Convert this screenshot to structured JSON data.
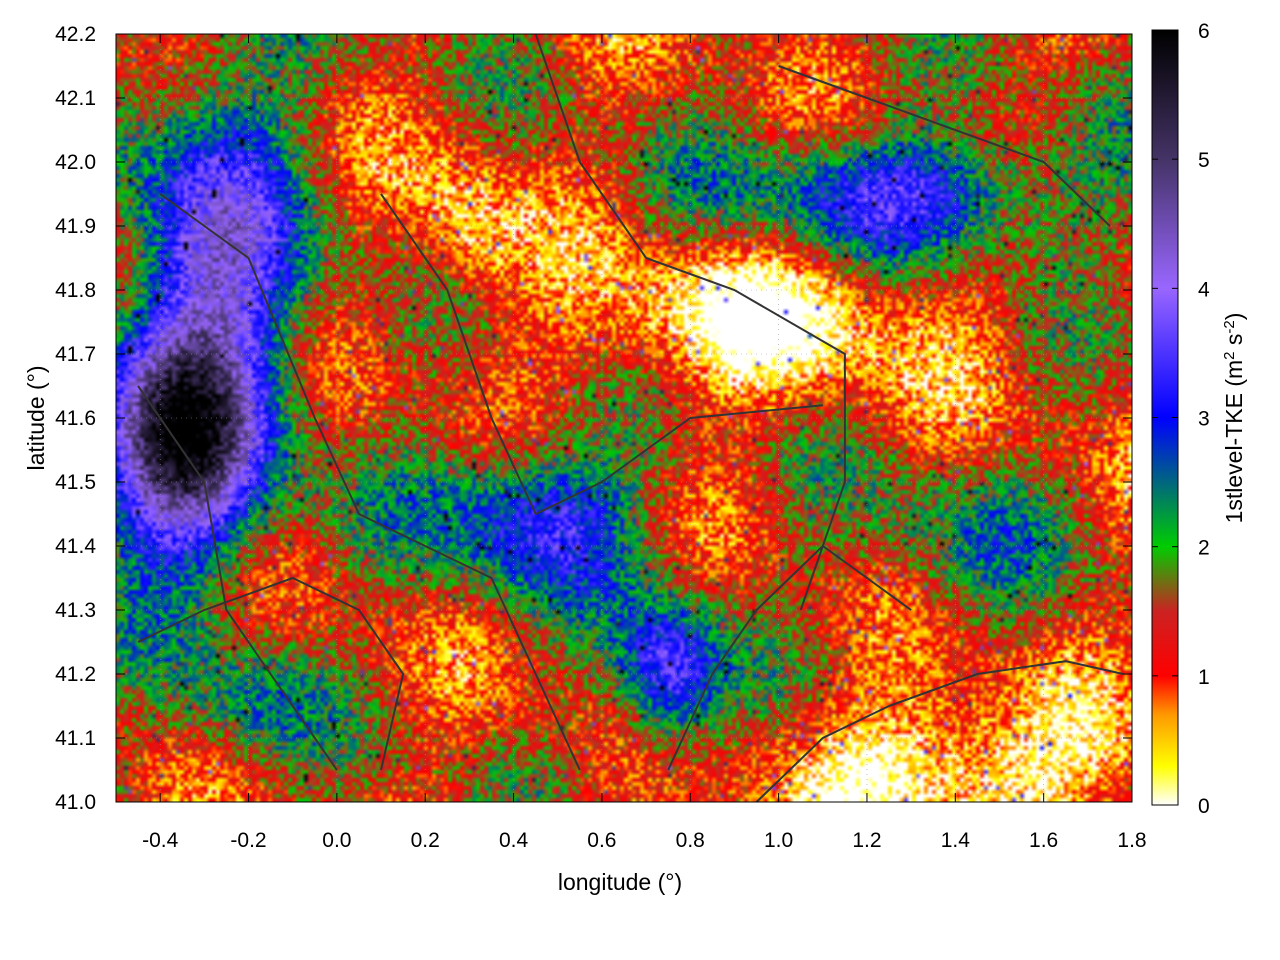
{
  "chart_data": {
    "type": "heatmap",
    "title": "",
    "xlabel": "longitude (°)",
    "ylabel": "latitude (°)",
    "xlim": [
      -0.5,
      1.8
    ],
    "ylim": [
      41.0,
      42.2
    ],
    "xticks": [
      -0.4,
      -0.2,
      0.0,
      0.2,
      0.4,
      0.6,
      0.8,
      1.0,
      1.2,
      1.4,
      1.6,
      1.8
    ],
    "xtick_labels": [
      "-0.4",
      "-0.2",
      "0.0",
      "0.2",
      "0.4",
      "0.6",
      "0.8",
      "1.0",
      "1.2",
      "1.4",
      "1.6",
      "1.8"
    ],
    "yticks": [
      41.0,
      41.1,
      41.2,
      41.3,
      41.4,
      41.5,
      41.6,
      41.7,
      41.8,
      41.9,
      42.0,
      42.1,
      42.2
    ],
    "ytick_labels": [
      "41.0",
      "41.1",
      "41.2",
      "41.3",
      "41.4",
      "41.5",
      "41.6",
      "41.7",
      "41.8",
      "41.9",
      "42.0",
      "42.1",
      "42.2"
    ],
    "grid": true,
    "colorbar": {
      "label_main": "1stlevel-TKE (m",
      "label_sup1": "2",
      "label_mid": " s",
      "label_sup2": "-2",
      "label_end": ")",
      "range": [
        0,
        6
      ],
      "ticks": [
        0,
        1,
        2,
        3,
        4,
        5,
        6
      ],
      "tick_labels": [
        "0",
        "1",
        "2",
        "3",
        "4",
        "5",
        "6"
      ],
      "palette": [
        {
          "v": 0.0,
          "color": "#ffffff"
        },
        {
          "v": 0.3,
          "color": "#ffff00"
        },
        {
          "v": 0.7,
          "color": "#ff9900"
        },
        {
          "v": 1.0,
          "color": "#ff0000"
        },
        {
          "v": 1.5,
          "color": "#cc2222"
        },
        {
          "v": 2.0,
          "color": "#00cc00"
        },
        {
          "v": 3.0,
          "color": "#0000ff"
        },
        {
          "v": 4.0,
          "color": "#9966ff"
        },
        {
          "v": 5.0,
          "color": "#443366"
        },
        {
          "v": 6.0,
          "color": "#000000"
        }
      ]
    },
    "field_features": [
      {
        "lon": -0.28,
        "lat": 41.8,
        "sx": 0.2,
        "sy": 0.35,
        "value": 2.6
      },
      {
        "lon": -0.38,
        "lat": 41.55,
        "sx": 0.18,
        "sy": 0.18,
        "value": 3.0
      },
      {
        "lon": 0.45,
        "lat": 41.45,
        "sx": 0.25,
        "sy": 0.12,
        "value": 2.0
      },
      {
        "lon": 0.95,
        "lat": 41.75,
        "sx": 0.4,
        "sy": 0.12,
        "value": -1.4
      },
      {
        "lon": 0.3,
        "lat": 41.9,
        "sx": 0.12,
        "sy": 0.12,
        "value": -1.0
      },
      {
        "lon": 1.4,
        "lat": 41.05,
        "sx": 0.35,
        "sy": 0.12,
        "value": -1.6
      },
      {
        "lon": 1.3,
        "lat": 41.95,
        "sx": 0.4,
        "sy": 0.1,
        "value": 2.0
      },
      {
        "lon": 0.75,
        "lat": 41.2,
        "sx": 0.12,
        "sy": 0.12,
        "value": 2.4
      },
      {
        "lon": -0.2,
        "lat": 41.15,
        "sx": 0.15,
        "sy": 0.1,
        "value": 1.0
      },
      {
        "lon": 1.4,
        "lat": 41.4,
        "sx": 0.25,
        "sy": 0.12,
        "value": 0.8
      }
    ],
    "contours": [
      [
        [
          -0.4,
          41.95
        ],
        [
          -0.2,
          41.85
        ],
        [
          -0.05,
          41.6
        ],
        [
          0.05,
          41.45
        ],
        [
          0.2,
          41.4
        ],
        [
          0.35,
          41.35
        ],
        [
          0.45,
          41.2
        ],
        [
          0.55,
          41.05
        ]
      ],
      [
        [
          0.1,
          41.95
        ],
        [
          0.25,
          41.8
        ],
        [
          0.35,
          41.6
        ],
        [
          0.45,
          41.45
        ],
        [
          0.6,
          41.5
        ],
        [
          0.8,
          41.6
        ],
        [
          1.1,
          41.62
        ]
      ],
      [
        [
          0.45,
          42.2
        ],
        [
          0.55,
          42.0
        ],
        [
          0.7,
          41.85
        ],
        [
          0.9,
          41.8
        ],
        [
          1.15,
          41.7
        ],
        [
          1.15,
          41.5
        ],
        [
          1.05,
          41.3
        ]
      ],
      [
        [
          0.95,
          41.0
        ],
        [
          1.1,
          41.1
        ],
        [
          1.25,
          41.15
        ],
        [
          1.45,
          41.2
        ],
        [
          1.65,
          41.22
        ],
        [
          1.78,
          41.2
        ]
      ],
      [
        [
          0.75,
          41.05
        ],
        [
          0.85,
          41.2
        ],
        [
          0.95,
          41.3
        ],
        [
          1.1,
          41.4
        ],
        [
          1.2,
          41.35
        ],
        [
          1.3,
          41.3
        ]
      ],
      [
        [
          -0.45,
          41.25
        ],
        [
          -0.3,
          41.3
        ],
        [
          -0.1,
          41.35
        ],
        [
          0.05,
          41.3
        ],
        [
          0.15,
          41.2
        ],
        [
          0.1,
          41.05
        ]
      ],
      [
        [
          1.0,
          42.15
        ],
        [
          1.2,
          42.1
        ],
        [
          1.4,
          42.05
        ],
        [
          1.6,
          42.0
        ],
        [
          1.75,
          41.9
        ]
      ],
      [
        [
          -0.45,
          41.65
        ],
        [
          -0.3,
          41.5
        ],
        [
          -0.25,
          41.3
        ],
        [
          -0.1,
          41.15
        ],
        [
          0.0,
          41.05
        ]
      ]
    ]
  }
}
